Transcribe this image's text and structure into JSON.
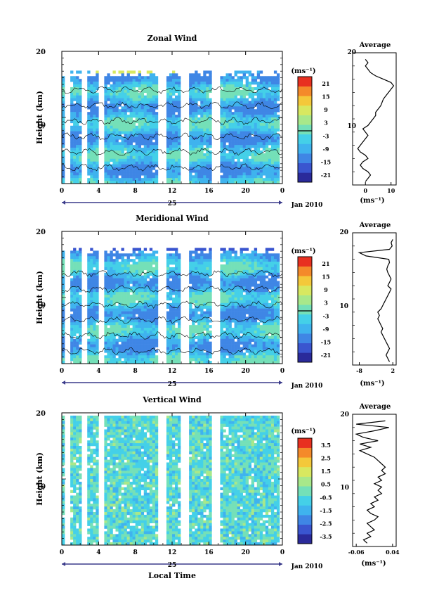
{
  "figure": {
    "date_label": "Jan 2010",
    "xlabel": "Local Time",
    "ylabel": "Height (km)",
    "unit_label": "(ms⁻¹)",
    "average_title": "Average"
  },
  "colors": {
    "scale": [
      "#2a2a9a",
      "#3a55cf",
      "#3f86e5",
      "#3fb3ee",
      "#44d0e8",
      "#74e0b8",
      "#a8e88a",
      "#d8e860",
      "#f4c83a",
      "#f48a2a",
      "#e83020"
    ],
    "frame": "#000000",
    "axis_arrow": "#3a3a8a"
  },
  "chart_data": [
    {
      "type": "heatmap",
      "title": "Zonal Wind",
      "x_ticks": [
        "0",
        "4",
        "8",
        "12",
        "16",
        "20",
        "0"
      ],
      "x_sub_label": "25",
      "y_ticks": [
        "20",
        "10"
      ],
      "ylim": [
        0,
        20
      ],
      "colorbar": {
        "ticks": [
          "21",
          "15",
          "9",
          "3",
          "-3",
          "-9",
          "-15",
          "-21"
        ],
        "range": [
          -24,
          24
        ],
        "zero_line": true
      },
      "profile": {
        "title": "Average",
        "x_ticks": [
          "0",
          "10"
        ],
        "xlim": [
          -5,
          12
        ],
        "x": [
          0,
          1,
          2,
          1,
          -1,
          -2,
          -1,
          1,
          0,
          -2,
          -3,
          -2,
          -1,
          0,
          1,
          0,
          -1,
          1,
          2,
          3,
          4,
          4,
          5,
          6,
          7,
          9,
          11,
          10,
          7,
          4,
          2,
          1,
          0,
          1,
          0
        ],
        "y": [
          0.5,
          1,
          1.5,
          2,
          2.5,
          3,
          3.5,
          4,
          4.5,
          5,
          5.5,
          6,
          6.5,
          7,
          7.5,
          8,
          8.5,
          9,
          9.5,
          10,
          10.5,
          11,
          11.5,
          12,
          13,
          14,
          15,
          15.5,
          16,
          16.5,
          17,
          17.5,
          18,
          18.5,
          19
        ]
      }
    },
    {
      "type": "heatmap",
      "title": "Meridional Wind",
      "x_ticks": [
        "0",
        "4",
        "8",
        "12",
        "16",
        "20",
        "0"
      ],
      "x_sub_label": "25",
      "y_ticks": [
        "20",
        "10"
      ],
      "ylim": [
        0,
        20
      ],
      "colorbar": {
        "ticks": [
          "21",
          "15",
          "9",
          "3",
          "-3",
          "-9",
          "-15",
          "-21"
        ],
        "range": [
          -24,
          24
        ],
        "zero_line": true
      },
      "profile": {
        "title": "Average",
        "x_ticks": [
          "-8",
          "2"
        ],
        "xlim": [
          -10,
          3
        ],
        "x": [
          1,
          0.5,
          0,
          0.5,
          1,
          0.5,
          0,
          -0.5,
          -1,
          -1.5,
          -1,
          -1.5,
          -2,
          -2.5,
          -2,
          -2.5,
          -1.5,
          -1,
          -0.5,
          0,
          0.5,
          1,
          1.5,
          0.5,
          1,
          1.5,
          1,
          0.5,
          0.2,
          0.5,
          1,
          0.8,
          -6,
          -8,
          1,
          1.8,
          1.5,
          2
        ],
        "y": [
          0.5,
          1,
          1.5,
          2,
          2.5,
          3,
          3.5,
          4,
          4.5,
          5,
          5.5,
          6,
          6.5,
          7,
          7.5,
          8,
          8.5,
          9,
          9.5,
          10,
          10.5,
          11,
          11.5,
          12,
          12.5,
          13,
          13.5,
          14,
          14.5,
          15,
          15.5,
          16,
          16.5,
          17,
          17.5,
          18,
          18.5,
          19
        ]
      }
    },
    {
      "type": "heatmap",
      "title": "Vertical Wind",
      "x_ticks": [
        "0",
        "4",
        "8",
        "12",
        "16",
        "20",
        "0"
      ],
      "x_sub_label": "25",
      "y_ticks": [
        "20",
        "10"
      ],
      "ylim": [
        0,
        20
      ],
      "colorbar": {
        "ticks": [
          "3.5",
          "2.5",
          "1.5",
          "0.5",
          "-0.5",
          "-1.5",
          "-2.5",
          "-3.5"
        ],
        "range": [
          -4,
          4
        ],
        "zero_line": false
      },
      "profile": {
        "title": "Average",
        "x_ticks": [
          "-0.06",
          "0.04"
        ],
        "xlim": [
          -0.07,
          0.05
        ],
        "x": [
          -0.03,
          -0.04,
          -0.02,
          -0.03,
          -0.01,
          -0.02,
          -0.03,
          -0.01,
          0.0,
          -0.02,
          -0.03,
          -0.01,
          -0.02,
          0.0,
          -0.01,
          0.01,
          0.0,
          0.01,
          -0.01,
          0.01,
          0.0,
          0.02,
          0.01,
          0.02,
          0.01,
          0.0,
          -0.01,
          -0.03,
          -0.05,
          -0.02,
          -0.05,
          0.0,
          -0.04,
          -0.06,
          -0.01,
          0.03,
          -0.06,
          0.02
        ],
        "y": [
          0.5,
          1,
          1.5,
          2,
          2.5,
          3,
          3.5,
          4,
          4.5,
          5,
          5.5,
          6,
          6.5,
          7,
          7.5,
          8,
          8.5,
          9,
          9.5,
          10,
          10.5,
          11,
          11.5,
          12,
          12.5,
          13,
          13.5,
          14,
          14.5,
          15,
          15.5,
          16,
          16.5,
          17,
          17.5,
          18,
          18.5,
          19
        ]
      }
    }
  ]
}
